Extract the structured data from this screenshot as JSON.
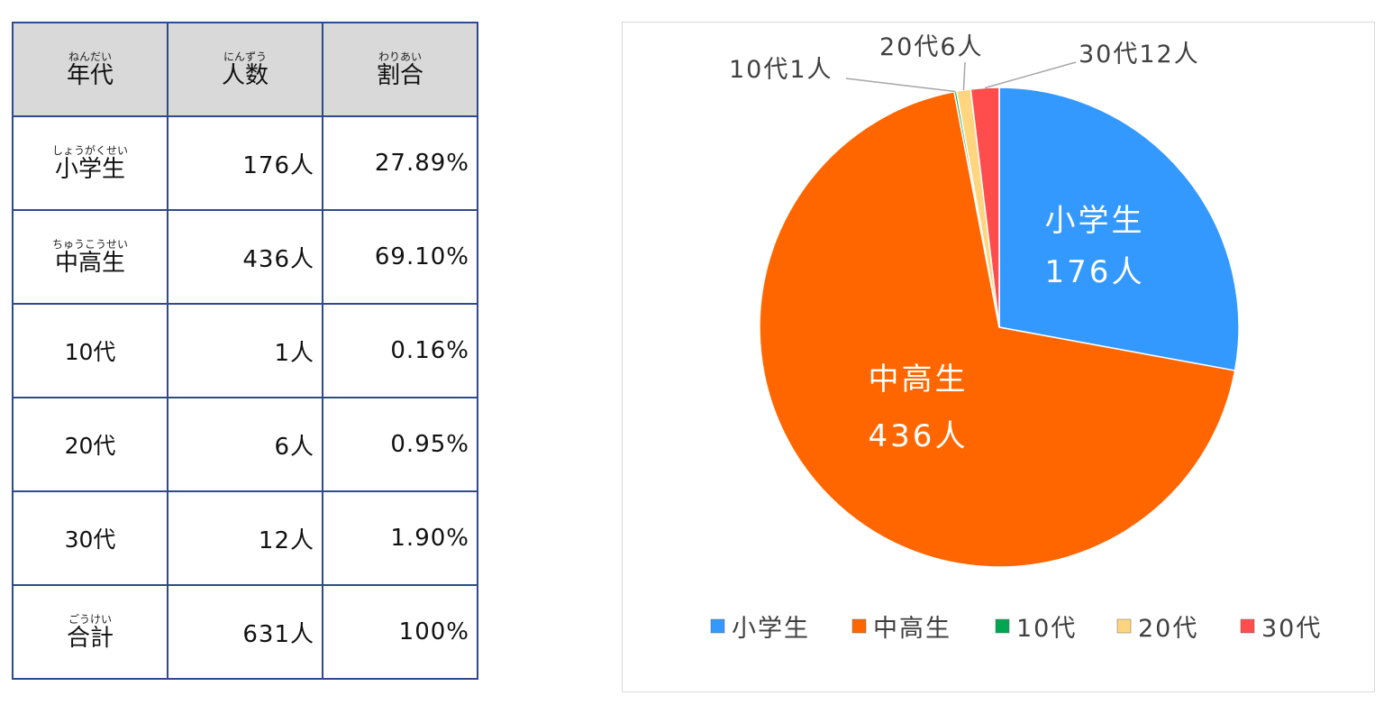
{
  "table": {
    "headers": [
      {
        "ruby": "ねんだい",
        "text": "年代"
      },
      {
        "ruby": "にんずう",
        "text": "人数"
      },
      {
        "ruby": "わりあい",
        "text": "割合"
      }
    ],
    "rows": [
      {
        "label": "小学生",
        "ruby": "しょうがくせい",
        "count": "176人",
        "ratio": "27.89%"
      },
      {
        "label": "中高生",
        "ruby": "ちゅうこうせい",
        "count": "436人",
        "ratio": "69.10%"
      },
      {
        "label": "10代",
        "ruby": "",
        "count": "1人",
        "ratio": "0.16%"
      },
      {
        "label": "20代",
        "ruby": "",
        "count": "6人",
        "ratio": "0.95%"
      },
      {
        "label": "30代",
        "ruby": "",
        "count": "12人",
        "ratio": "1.90%"
      },
      {
        "label": "合計",
        "ruby": "ごうけい",
        "count": "631人",
        "ratio": "100%"
      }
    ]
  },
  "chart_data": {
    "type": "pie",
    "categories": [
      "小学生",
      "中高生",
      "10代",
      "20代",
      "30代"
    ],
    "values": [
      176,
      436,
      1,
      6,
      12
    ],
    "unit": "人",
    "colors": [
      "#3399ff",
      "#ff6600",
      "#00a650",
      "#ffd580",
      "#ff4d4d"
    ],
    "legend_position": "bottom",
    "inside_labels": [
      {
        "name": "小学生",
        "value": "176人"
      },
      {
        "name": "中高生",
        "value": "436人"
      }
    ],
    "callout_labels": [
      {
        "text": "10代1人"
      },
      {
        "text": "20代6人"
      },
      {
        "text": "30代12人"
      }
    ]
  }
}
